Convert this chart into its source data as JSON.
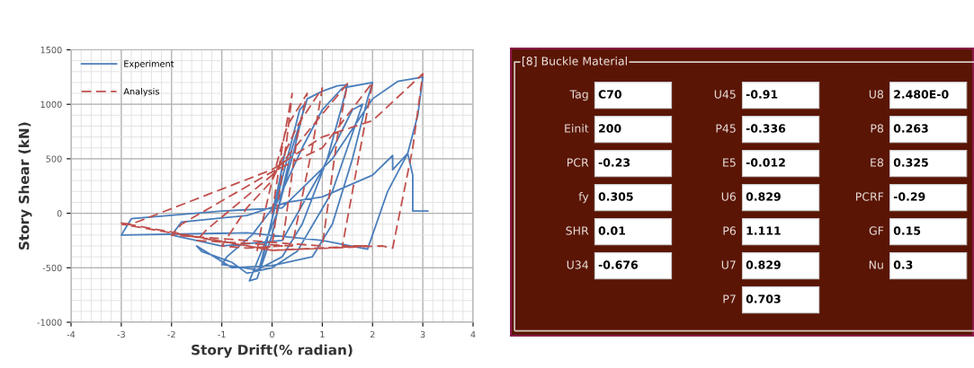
{
  "chart_data": [
    {
      "type": "line",
      "xlabel": "Story Drift(% radian)",
      "ylabel": "Story Shear (kN)",
      "xlim": [
        -4,
        4
      ],
      "ylim": [
        -1000,
        1500
      ],
      "xticks": [
        -4,
        -3,
        -2,
        -1,
        0,
        1,
        2,
        3,
        4
      ],
      "yticks": [
        -1000,
        -500,
        0,
        500,
        1000,
        1500
      ],
      "grid": true,
      "legend": "top left",
      "series": [
        {
          "name": "Experiment",
          "color": "#4a7ebb",
          "line_style": "solid",
          "x": [
            0,
            0.15,
            0.25,
            0.1,
            -0.15,
            -0.25,
            -0.05,
            0.3,
            0.55,
            0.65,
            0.45,
            0.1,
            -0.3,
            -0.45,
            -0.3,
            0,
            0.4,
            0.7,
            1.0,
            1.3,
            1.5,
            1.4,
            1.1,
            0.6,
            0.2,
            -0.3,
            -1.0,
            -0.9,
            -0.4,
            0.1,
            0.6,
            1.0,
            1.4,
            2.0,
            1.9,
            1.6,
            1.2,
            0.8,
            0,
            -0.8,
            -1.5,
            -1.4,
            -0.8,
            -0.5,
            0,
            0.5,
            1.2,
            1.8,
            1.6,
            1.0,
            0.2,
            -1.0,
            -2.0,
            -1.8,
            -0.5,
            0.3,
            1.0,
            2.0,
            2.4,
            2.4,
            2.7,
            2.3,
            1.9,
            1.0,
            -0.5,
            -3.0,
            -2.8,
            -1.0,
            0.2,
            1.2,
            2.0,
            2.5,
            3.0,
            2.9,
            2.7,
            2.8,
            2.8,
            3.1
          ],
          "values": [
            0,
            300,
            550,
            150,
            -350,
            -500,
            -150,
            500,
            950,
            1000,
            600,
            0,
            -450,
            -620,
            -600,
            -200,
            600,
            1050,
            1120,
            1170,
            1180,
            1000,
            500,
            -100,
            -400,
            -520,
            -470,
            -400,
            -200,
            100,
            600,
            950,
            1150,
            1200,
            1050,
            500,
            -100,
            -400,
            -480,
            -500,
            -300,
            -350,
            -450,
            -550,
            -500,
            -350,
            200,
            1000,
            950,
            400,
            -250,
            -300,
            -200,
            -80,
            -20,
            100,
            150,
            350,
            530,
            400,
            550,
            200,
            -330,
            -250,
            -180,
            -200,
            -50,
            20,
            50,
            500,
            1050,
            1210,
            1250,
            900,
            550,
            350,
            20,
            20
          ]
        },
        {
          "name": "Analysis",
          "color": "#c0504d",
          "line_style": "dashed",
          "x": [
            0,
            0.2,
            0.4,
            0.3,
            0,
            -0.3,
            -0.2,
            0,
            0.3,
            0.7,
            0.5,
            0.2,
            -0.5,
            -1.0,
            -0.5,
            0,
            0.5,
            1.0,
            0.8,
            0.4,
            -1.5,
            -1.3,
            0,
            1.5,
            1.3,
            1.0,
            -2.0,
            -1.8,
            0,
            1.0,
            2.0,
            1.8,
            1.4,
            1.9,
            0,
            -3.0,
            -2.8,
            0,
            1.0,
            2.0,
            3.0,
            2.8,
            2.4,
            2.2,
            0,
            -3.0
          ],
          "values": [
            0,
            600,
            1100,
            700,
            -300,
            -350,
            -100,
            300,
            800,
            1100,
            700,
            -300,
            -320,
            -300,
            50,
            300,
            800,
            1150,
            600,
            -300,
            -250,
            -150,
            350,
            1190,
            700,
            -300,
            -200,
            -100,
            380,
            600,
            1200,
            700,
            -300,
            -300,
            -340,
            -90,
            -100,
            400,
            700,
            850,
            1280,
            600,
            -320,
            -300,
            -340,
            -100
          ]
        }
      ]
    },
    {
      "type": "other",
      "title": "[8] Buckle Material",
      "categories": [
        "Tag",
        "Einit",
        "PCR",
        "fy",
        "SHR",
        "U34",
        null,
        "U45",
        "P45",
        "E5",
        "U6",
        "P6",
        "U7",
        "P7",
        "U8",
        "P8",
        "E8",
        "PCRF",
        "GF",
        "Nu",
        null
      ],
      "value_labels": [
        "C70",
        "200",
        "-0.23",
        "0.305",
        "0.01",
        "-0.676",
        null,
        "-0.91",
        "-0.336",
        "-0.012",
        "0.829",
        "1.111",
        "0.829",
        "0.703",
        "2.480E-0",
        "0.263",
        "0.325",
        "-0.29",
        "0.15",
        "0.3",
        null
      ],
      "color": "#5a1505"
    }
  ]
}
